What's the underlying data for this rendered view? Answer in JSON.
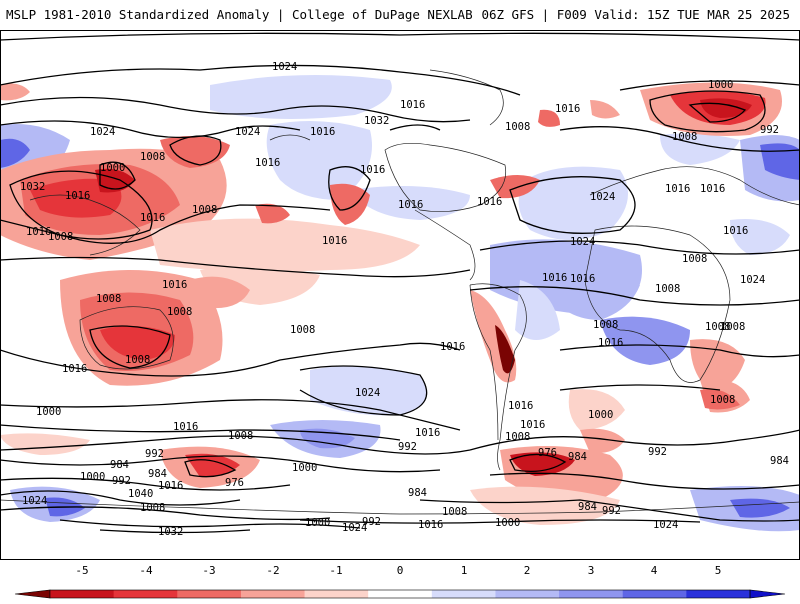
{
  "header": {
    "title": "MSLP 1981-2010 Standardized Anomaly | College of DuPage NEXLAB",
    "run_info": "06Z GFS | F009 Valid: 15Z TUE MAR 25 2025"
  },
  "map": {
    "projection": "global cylindrical",
    "isobar_labels": [
      "1024",
      "1016",
      "1032",
      "1008",
      "1000",
      "992",
      "1024",
      "1016",
      "1008",
      "1024",
      "1016",
      "1032",
      "1016",
      "1008",
      "1008",
      "1016",
      "1024",
      "1016",
      "1016",
      "1016",
      "1016",
      "1016",
      "1016",
      "1008",
      "1024",
      "1016",
      "1024",
      "1016",
      "1016",
      "1016",
      "1008",
      "1008",
      "1016",
      "1000",
      "1016",
      "1008",
      "1008",
      "1008",
      "1008",
      "1008",
      "1016",
      "1008",
      "1016",
      "1024",
      "1008",
      "1016",
      "1016",
      "1000",
      "1008",
      "1008",
      "1016",
      "1000",
      "992",
      "992",
      "984",
      "984",
      "992",
      "976",
      "1040",
      "1016",
      "1000",
      "1024",
      "1008",
      "1032",
      "1000",
      "992",
      "976",
      "984",
      "984",
      "992",
      "992",
      "984",
      "984",
      "1016",
      "1016",
      "1008",
      "1024",
      "1000",
      "1000",
      "1016",
      "1024",
      "1008"
    ]
  },
  "colorbar": {
    "ticks": [
      "-5",
      "-4",
      "-3",
      "-2",
      "-1",
      "0",
      "1",
      "2",
      "3",
      "4",
      "5"
    ],
    "colors": [
      "#7a0403",
      "#c8141d",
      "#e5353a",
      "#ee6a64",
      "#f7a398",
      "#fcd3ca",
      "#ffffff",
      "#d7dcfb",
      "#b4baf5",
      "#8f95ef",
      "#5f66e6",
      "#2a31db",
      "#1010c8"
    ]
  }
}
